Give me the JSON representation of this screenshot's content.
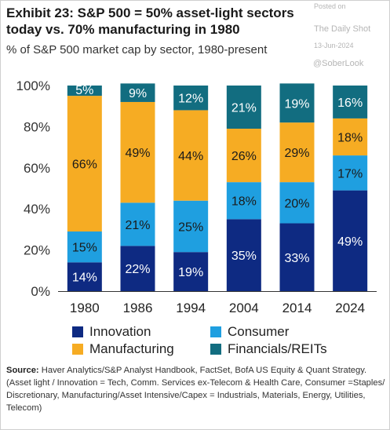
{
  "header": {
    "title": "Exhibit 23: S&P 500 = 50% asset-light sectors today vs. 70% manufacturing in 1980",
    "subtitle": "% of S&P 500 market cap by sector, 1980-present"
  },
  "watermark": {
    "line1": "Posted on",
    "line2": "The Daily Shot",
    "line3": "13-Jun-2024",
    "line4": "@SoberLook"
  },
  "source": {
    "label": "Source:",
    "text": " Haver Analytics/S&P Analyst Handbook, FactSet, BofA US Equity & Quant Strategy. (Asset light / Innovation = Tech, Comm. Services ex-Telecom & Health Care, Consumer =Staples/ Discretionary, Manufacturing/Asset Intensive/Capex = Industrials, Materials, Energy, Utilities, Telecom)"
  },
  "chart_data": {
    "type": "bar",
    "stacked": true,
    "categories": [
      "1980",
      "1986",
      "1994",
      "2004",
      "2014",
      "2024"
    ],
    "series": [
      {
        "name": "Innovation",
        "values": [
          14,
          22,
          19,
          35,
          33,
          49
        ],
        "color": "#0e2a82",
        "label_color": "#ffffff"
      },
      {
        "name": "Consumer",
        "values": [
          15,
          21,
          25,
          18,
          20,
          17
        ],
        "color": "#1f9fe0",
        "label_color": "#1a1a1a"
      },
      {
        "name": "Manufacturing",
        "values": [
          66,
          49,
          44,
          26,
          29,
          18
        ],
        "color": "#f6ac23",
        "label_color": "#1a1a1a"
      },
      {
        "name": "Financials/REITs",
        "values": [
          5,
          9,
          12,
          21,
          19,
          16
        ],
        "color": "#126d80",
        "label_color": "#ffffff"
      }
    ],
    "ylim": [
      0,
      100
    ],
    "yticks": [
      "0%",
      "20%",
      "40%",
      "60%",
      "80%",
      "100%"
    ],
    "value_suffix": "%",
    "grid": false,
    "legend_position": "bottom"
  }
}
